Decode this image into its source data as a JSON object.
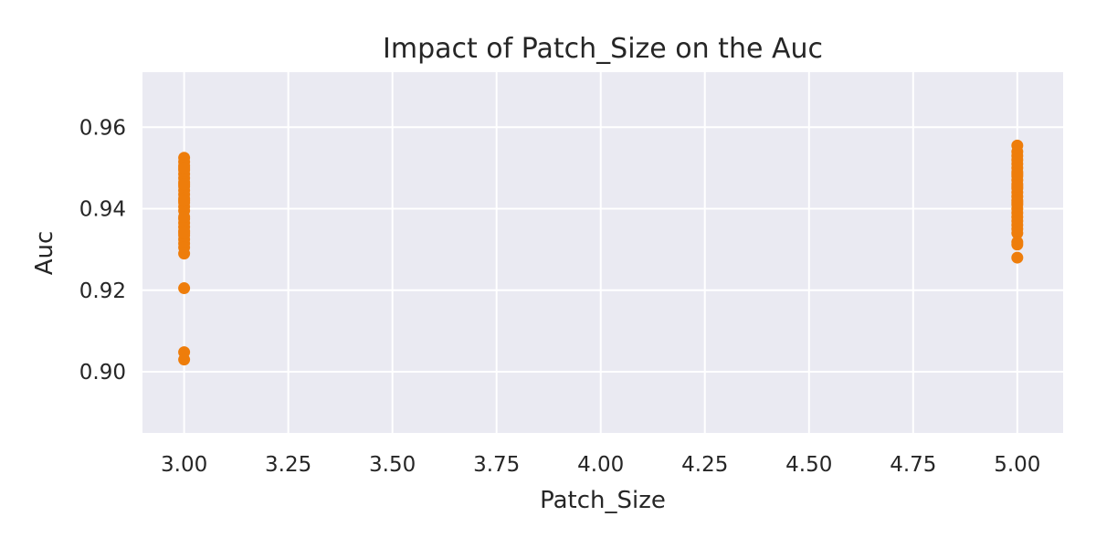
{
  "chart_data": {
    "type": "scatter",
    "title": "Impact of Patch_Size on the Auc",
    "xlabel": "Patch_Size",
    "ylabel": "Auc",
    "xlim": [
      2.9,
      5.11
    ],
    "ylim": [
      0.885,
      0.9735
    ],
    "xticks": [
      3.0,
      3.25,
      3.5,
      3.75,
      4.0,
      4.25,
      4.5,
      4.75,
      5.0
    ],
    "xtick_labels": [
      "3.00",
      "3.25",
      "3.50",
      "3.75",
      "4.00",
      "4.25",
      "4.50",
      "4.75",
      "5.00"
    ],
    "yticks": [
      0.9,
      0.92,
      0.94,
      0.96
    ],
    "ytick_labels": [
      "0.90",
      "0.92",
      "0.94",
      "0.96"
    ],
    "grid": true,
    "background_color": "#eaeaf2",
    "marker_color": "#ee7d0b",
    "series": [
      {
        "x": [
          3,
          3,
          3,
          3,
          3,
          3,
          3,
          3,
          3,
          3,
          3,
          3,
          3,
          3,
          3,
          3,
          3,
          3,
          3,
          3,
          3,
          3,
          3,
          3,
          3,
          3,
          3,
          3,
          3,
          3,
          3
        ],
        "y": [
          0.9525,
          0.9515,
          0.9505,
          0.9495,
          0.9485,
          0.9475,
          0.9465,
          0.9455,
          0.9445,
          0.9435,
          0.9425,
          0.9415,
          0.9405,
          0.9395,
          0.9375,
          0.9365,
          0.9355,
          0.9345,
          0.9335,
          0.9325,
          0.9315,
          0.9305,
          0.929,
          0.9205,
          0.9048,
          0.903,
          0.946,
          0.942,
          0.938,
          0.934,
          0.95
        ]
      },
      {
        "x": [
          5,
          5,
          5,
          5,
          5,
          5,
          5,
          5,
          5,
          5,
          5,
          5,
          5,
          5,
          5,
          5,
          5,
          5,
          5,
          5,
          5,
          5,
          5,
          5,
          5,
          5,
          5,
          5
        ],
        "y": [
          0.9555,
          0.954,
          0.953,
          0.952,
          0.951,
          0.95,
          0.949,
          0.948,
          0.947,
          0.946,
          0.945,
          0.944,
          0.943,
          0.942,
          0.941,
          0.94,
          0.939,
          0.938,
          0.937,
          0.936,
          0.935,
          0.934,
          0.9318,
          0.9312,
          0.928,
          0.9455,
          0.9415,
          0.9485
        ]
      }
    ]
  }
}
